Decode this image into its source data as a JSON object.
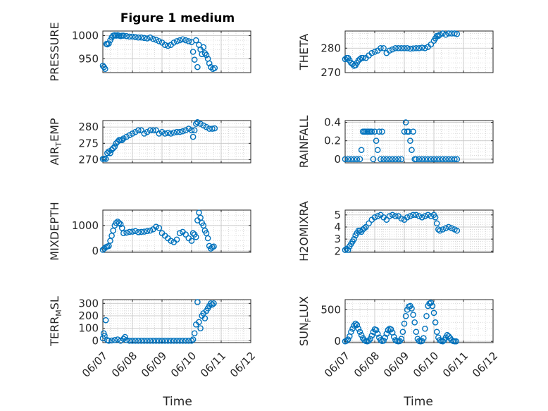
{
  "figure_title": "Figure 1 medium",
  "marker_color": "#0072BD",
  "chart_data": [
    {
      "type": "scatter",
      "ylabel_main": "PRESSURE",
      "ylabel_sub": "",
      "ylim": [
        920,
        1010
      ],
      "yticks": [
        950,
        1000
      ],
      "xlim": [
        "06/07",
        "06/12"
      ],
      "xticks": [
        "06/07",
        "06/08",
        "06/09",
        "06/10",
        "06/11",
        "06/12"
      ],
      "x": [
        0.0,
        0.04,
        0.08,
        0.12,
        0.15,
        0.2,
        0.25,
        0.3,
        0.35,
        0.4,
        0.45,
        0.5,
        0.55,
        0.6,
        0.65,
        0.7,
        0.8,
        0.9,
        1.0,
        1.1,
        1.2,
        1.3,
        1.4,
        1.5,
        1.6,
        1.7,
        1.8,
        1.9,
        2.0,
        2.1,
        2.2,
        2.3,
        2.4,
        2.5,
        2.6,
        2.7,
        2.8,
        2.9,
        3.0,
        3.05,
        3.1,
        3.15,
        3.2,
        3.25,
        3.3,
        3.35,
        3.4,
        3.45,
        3.5,
        3.55,
        3.6,
        3.65,
        3.72,
        3.78
      ],
      "y": [
        935,
        932,
        928,
        982,
        981,
        983,
        990,
        996,
        1000,
        1001,
        1000,
        1001,
        1000,
        999,
        1000,
        1000,
        999,
        998,
        998,
        997,
        996,
        996,
        995,
        994,
        996,
        993,
        991,
        988,
        985,
        980,
        978,
        980,
        985,
        988,
        990,
        992,
        990,
        988,
        986,
        965,
        948,
        990,
        932,
        980,
        970,
        960,
        975,
        962,
        958,
        950,
        940,
        932,
        928,
        930
      ]
    },
    {
      "type": "scatter",
      "ylabel_main": "THETA",
      "ylabel_sub": "",
      "ylim": [
        270,
        287
      ],
      "yticks": [
        270,
        280
      ],
      "xlim": [
        "06/07",
        "06/12"
      ],
      "xticks": [
        "06/07",
        "06/08",
        "06/09",
        "06/10",
        "06/11",
        "06/12"
      ],
      "x": [
        0.0,
        0.05,
        0.1,
        0.15,
        0.2,
        0.25,
        0.3,
        0.35,
        0.4,
        0.45,
        0.5,
        0.55,
        0.6,
        0.7,
        0.8,
        0.9,
        1.0,
        1.1,
        1.2,
        1.3,
        1.4,
        1.5,
        1.6,
        1.7,
        1.8,
        1.9,
        2.0,
        2.1,
        2.2,
        2.3,
        2.4,
        2.5,
        2.6,
        2.7,
        2.8,
        2.9,
        3.0,
        3.05,
        3.1,
        3.15,
        3.2,
        3.3,
        3.4,
        3.5,
        3.6,
        3.7,
        3.78
      ],
      "y": [
        275.5,
        276,
        276,
        275,
        274,
        273.5,
        272.8,
        273,
        274,
        275,
        275.5,
        276,
        276,
        276,
        277,
        278,
        278.5,
        279,
        280,
        280,
        278,
        279,
        279.5,
        280,
        280,
        280,
        280,
        280,
        279.8,
        279.9,
        280,
        280,
        280.2,
        280,
        280.5,
        281.5,
        283,
        284,
        285,
        285,
        285.5,
        286,
        285.5,
        286,
        286,
        286,
        285.8
      ]
    },
    {
      "type": "scatter",
      "ylabel_main": "AIR",
      "ylabel_sub": "T",
      "ylabel_rest": "EMP",
      "ylim": [
        269,
        282
      ],
      "yticks": [
        270,
        275,
        280
      ],
      "xlim": [
        "06/07",
        "06/12"
      ],
      "xticks": [
        "06/07",
        "06/08",
        "06/09",
        "06/10",
        "06/11",
        "06/12"
      ],
      "x": [
        0.0,
        0.05,
        0.1,
        0.15,
        0.2,
        0.25,
        0.3,
        0.35,
        0.4,
        0.45,
        0.5,
        0.55,
        0.6,
        0.65,
        0.7,
        0.8,
        0.9,
        1.0,
        1.1,
        1.2,
        1.3,
        1.4,
        1.5,
        1.6,
        1.7,
        1.8,
        1.9,
        2.0,
        2.1,
        2.2,
        2.3,
        2.4,
        2.5,
        2.6,
        2.7,
        2.8,
        2.9,
        3.0,
        3.05,
        3.1,
        3.15,
        3.2,
        3.3,
        3.4,
        3.5,
        3.6,
        3.7,
        3.78
      ],
      "y": [
        270.2,
        270.3,
        270.2,
        272,
        272.5,
        272,
        273,
        273.5,
        274,
        275,
        275.5,
        276,
        276,
        276,
        276.5,
        277,
        277.5,
        278,
        278.5,
        279,
        279,
        278,
        278.5,
        279,
        279,
        279,
        278,
        278.5,
        278,
        278.2,
        278,
        278.3,
        278.5,
        278.5,
        278.7,
        279,
        279.5,
        279,
        277,
        279,
        281,
        281.5,
        281,
        280.5,
        280,
        279.5,
        279.5,
        279.6
      ]
    },
    {
      "type": "scatter",
      "ylabel_main": "RAINFALL",
      "ylabel_sub": "",
      "ylim": [
        -0.04,
        0.42
      ],
      "yticks": [
        0,
        0.2,
        0.4
      ],
      "xlim": [
        "06/07",
        "06/12"
      ],
      "xticks": [
        "06/07",
        "06/08",
        "06/09",
        "06/10",
        "06/11",
        "06/12"
      ],
      "x": [
        0.0,
        0.1,
        0.2,
        0.3,
        0.4,
        0.5,
        0.55,
        0.6,
        0.65,
        0.7,
        0.75,
        0.8,
        0.85,
        0.9,
        0.95,
        1.0,
        1.05,
        1.1,
        1.15,
        1.2,
        1.25,
        1.3,
        1.4,
        1.5,
        1.6,
        1.7,
        1.8,
        1.9,
        2.0,
        2.05,
        2.1,
        2.15,
        2.2,
        2.25,
        2.3,
        2.35,
        2.4,
        2.5,
        2.6,
        2.7,
        2.8,
        2.9,
        3.0,
        3.1,
        3.2,
        3.3,
        3.4,
        3.5,
        3.6,
        3.7,
        3.78
      ],
      "y": [
        0,
        0,
        0,
        0,
        0,
        0,
        0.1,
        0.3,
        0.3,
        0.3,
        0.3,
        0.3,
        0.3,
        0.3,
        0,
        0.3,
        0.2,
        0.1,
        0.3,
        0,
        0.3,
        0,
        0,
        0,
        0,
        0,
        0,
        0,
        0.3,
        0.4,
        0.3,
        0.3,
        0.2,
        0.1,
        0.3,
        0,
        0,
        0,
        0,
        0,
        0,
        0,
        0,
        0,
        0,
        0,
        0,
        0,
        0,
        0,
        0
      ]
    },
    {
      "type": "scatter",
      "ylabel_main": "MIXDEPTH",
      "ylabel_sub": "",
      "ylim": [
        -50,
        1600
      ],
      "yticks": [
        0,
        1000
      ],
      "xlim": [
        "06/07",
        "06/12"
      ],
      "xticks": [
        "06/07",
        "06/08",
        "06/09",
        "06/10",
        "06/11",
        "06/12"
      ],
      "x": [
        0.0,
        0.05,
        0.1,
        0.15,
        0.2,
        0.25,
        0.3,
        0.35,
        0.4,
        0.45,
        0.5,
        0.55,
        0.6,
        0.65,
        0.7,
        0.8,
        0.9,
        1.0,
        1.1,
        1.2,
        1.3,
        1.4,
        1.5,
        1.6,
        1.7,
        1.8,
        1.9,
        2.0,
        2.1,
        2.2,
        2.3,
        2.4,
        2.5,
        2.6,
        2.7,
        2.8,
        2.9,
        3.0,
        3.05,
        3.1,
        3.15,
        3.2,
        3.25,
        3.3,
        3.35,
        3.4,
        3.45,
        3.5,
        3.55,
        3.6,
        3.65,
        3.7,
        3.75
      ],
      "y": [
        50,
        100,
        150,
        180,
        200,
        400,
        600,
        800,
        1000,
        1100,
        1150,
        1100,
        1050,
        900,
        700,
        720,
        750,
        760,
        780,
        740,
        750,
        760,
        780,
        800,
        850,
        950,
        900,
        700,
        600,
        500,
        400,
        350,
        450,
        700,
        750,
        650,
        500,
        400,
        700,
        650,
        550,
        1200,
        1500,
        1300,
        1100,
        1000,
        800,
        700,
        500,
        200,
        100,
        150,
        180
      ]
    },
    {
      "type": "scatter",
      "ylabel_main": "H2OMIXRA",
      "ylabel_sub": "",
      "ylim": [
        1.9,
        5.4
      ],
      "yticks": [
        2,
        3,
        4,
        5
      ],
      "xlim": [
        "06/07",
        "06/12"
      ],
      "xticks": [
        "06/07",
        "06/08",
        "06/09",
        "06/10",
        "06/11",
        "06/12"
      ],
      "x": [
        0.0,
        0.05,
        0.1,
        0.15,
        0.2,
        0.25,
        0.3,
        0.35,
        0.4,
        0.45,
        0.5,
        0.55,
        0.6,
        0.65,
        0.7,
        0.8,
        0.9,
        1.0,
        1.1,
        1.2,
        1.3,
        1.4,
        1.5,
        1.6,
        1.7,
        1.8,
        1.9,
        2.0,
        2.1,
        2.2,
        2.3,
        2.4,
        2.5,
        2.6,
        2.7,
        2.8,
        2.9,
        3.0,
        3.05,
        3.1,
        3.15,
        3.2,
        3.3,
        3.4,
        3.5,
        3.6,
        3.7,
        3.78
      ],
      "y": [
        2.1,
        2.2,
        2.1,
        2.4,
        2.6,
        2.8,
        3.0,
        3.3,
        3.5,
        3.7,
        3.7,
        3.6,
        3.8,
        3.9,
        4.0,
        4.3,
        4.6,
        4.8,
        4.9,
        5.0,
        4.8,
        4.6,
        4.9,
        5.0,
        4.9,
        4.9,
        4.7,
        4.6,
        4.8,
        4.9,
        5.0,
        5.0,
        4.9,
        4.8,
        4.9,
        5.0,
        4.9,
        5.0,
        4.8,
        4.3,
        3.8,
        3.7,
        3.8,
        3.9,
        4.0,
        3.9,
        3.8,
        3.7
      ]
    },
    {
      "type": "scatter",
      "ylabel_main": "TERR",
      "ylabel_sub": "M",
      "ylabel_rest": "SL",
      "ylim": [
        -15,
        330
      ],
      "yticks": [
        0,
        100,
        200,
        300
      ],
      "xlim": [
        "06/07",
        "06/12"
      ],
      "xticks": [
        "06/07",
        "06/08",
        "06/09",
        "06/10",
        "06/11",
        "06/12"
      ],
      "x": [
        0.0,
        0.03,
        0.06,
        0.1,
        0.15,
        0.2,
        0.3,
        0.4,
        0.5,
        0.6,
        0.7,
        0.75,
        0.8,
        0.9,
        1.0,
        1.1,
        1.2,
        1.3,
        1.4,
        1.5,
        1.6,
        1.7,
        1.8,
        1.9,
        2.0,
        2.1,
        2.2,
        2.3,
        2.4,
        2.5,
        2.6,
        2.7,
        2.8,
        2.9,
        3.0,
        3.05,
        3.1,
        3.15,
        3.2,
        3.25,
        3.3,
        3.35,
        3.4,
        3.45,
        3.5,
        3.55,
        3.6,
        3.65,
        3.7,
        3.75
      ],
      "y": [
        20,
        60,
        40,
        165,
        5,
        0,
        2,
        5,
        10,
        0,
        15,
        30,
        5,
        0,
        0,
        0,
        0,
        0,
        0,
        0,
        0,
        0,
        0,
        0,
        0,
        0,
        0,
        0,
        0,
        0,
        0,
        0,
        0,
        0,
        0,
        10,
        60,
        130,
        310,
        150,
        100,
        200,
        220,
        180,
        240,
        260,
        280,
        300,
        290,
        300
      ]
    },
    {
      "type": "scatter",
      "ylabel_main": "SUN",
      "ylabel_sub": "F",
      "ylabel_rest": "LUX",
      "ylim": [
        -20,
        660
      ],
      "yticks": [
        0,
        500
      ],
      "xlim": [
        "06/07",
        "06/12"
      ],
      "xticks": [
        "06/07",
        "06/08",
        "06/09",
        "06/10",
        "06/11",
        "06/12"
      ],
      "x": [
        0.0,
        0.05,
        0.1,
        0.15,
        0.2,
        0.25,
        0.3,
        0.35,
        0.4,
        0.45,
        0.5,
        0.55,
        0.6,
        0.65,
        0.7,
        0.75,
        0.8,
        0.85,
        0.9,
        0.95,
        1.0,
        1.05,
        1.1,
        1.15,
        1.2,
        1.25,
        1.3,
        1.35,
        1.4,
        1.45,
        1.5,
        1.55,
        1.6,
        1.65,
        1.7,
        1.75,
        1.8,
        1.85,
        1.9,
        1.95,
        2.0,
        2.05,
        2.1,
        2.15,
        2.2,
        2.25,
        2.3,
        2.35,
        2.4,
        2.45,
        2.5,
        2.55,
        2.6,
        2.65,
        2.7,
        2.75,
        2.8,
        2.85,
        2.9,
        2.95,
        3.0,
        3.05,
        3.1,
        3.15,
        3.2,
        3.25,
        3.3,
        3.35,
        3.4,
        3.45,
        3.5,
        3.55,
        3.6,
        3.65,
        3.7,
        3.75
      ],
      "y": [
        0,
        10,
        30,
        80,
        150,
        200,
        250,
        280,
        260,
        200,
        150,
        100,
        50,
        20,
        5,
        0,
        10,
        40,
        90,
        150,
        190,
        180,
        120,
        60,
        20,
        5,
        10,
        60,
        120,
        180,
        200,
        190,
        140,
        70,
        20,
        5,
        0,
        5,
        40,
        150,
        280,
        400,
        500,
        550,
        560,
        520,
        420,
        300,
        150,
        40,
        5,
        0,
        5,
        50,
        200,
        400,
        560,
        600,
        610,
        560,
        450,
        300,
        150,
        60,
        20,
        5,
        0,
        20,
        60,
        100,
        80,
        50,
        20,
        5,
        0,
        0
      ]
    }
  ]
}
